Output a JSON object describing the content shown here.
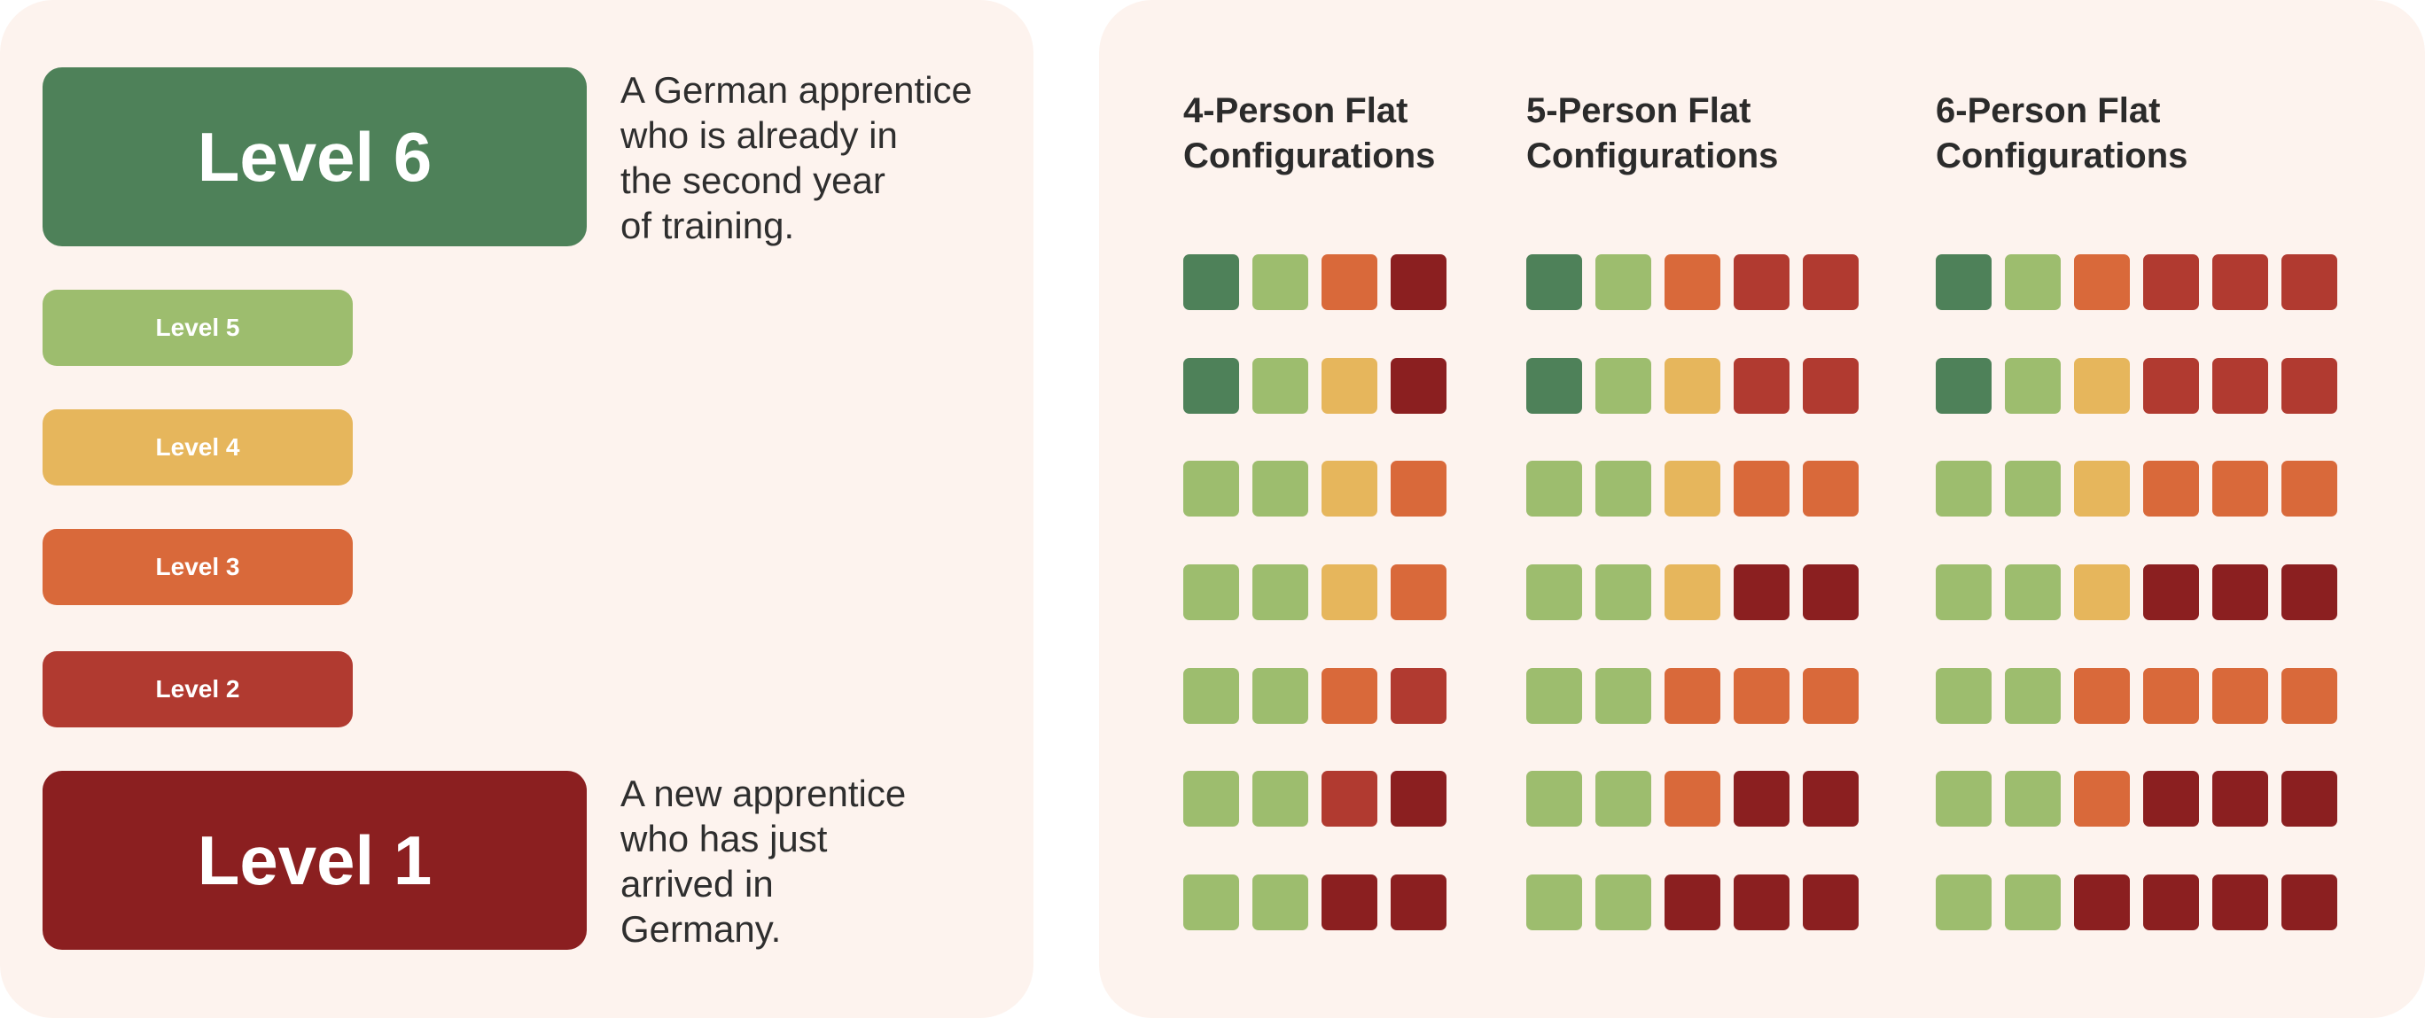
{
  "colors": {
    "level6": "#4e8159",
    "level5": "#9dbd6e",
    "level4": "#e6b65c",
    "level3": "#d9693a",
    "level2": "#b13a30",
    "level1": "#8b1f20"
  },
  "legend": {
    "level6": {
      "label": "Level 6",
      "description": "A German apprentice\nwho is already in\nthe second year\nof training."
    },
    "level5": {
      "label": "Level 5"
    },
    "level4": {
      "label": "Level 4"
    },
    "level3": {
      "label": "Level 3"
    },
    "level2": {
      "label": "Level 2"
    },
    "level1": {
      "label": "Level 1",
      "description": "A new apprentice\nwho has just\narrived in\nGermany."
    }
  },
  "configurations": [
    {
      "title": "4-Person Flat\nConfigurations",
      "rows": [
        [
          6,
          5,
          3,
          1
        ],
        [
          6,
          5,
          4,
          1
        ],
        [
          5,
          5,
          4,
          3
        ],
        [
          5,
          5,
          4,
          3
        ],
        [
          5,
          5,
          3,
          2
        ],
        [
          5,
          5,
          2,
          1
        ],
        [
          5,
          5,
          1,
          1
        ]
      ]
    },
    {
      "title": "5-Person Flat\nConfigurations",
      "rows": [
        [
          6,
          5,
          3,
          2,
          2
        ],
        [
          6,
          5,
          4,
          2,
          2
        ],
        [
          5,
          5,
          4,
          3,
          3
        ],
        [
          5,
          5,
          4,
          1,
          1
        ],
        [
          5,
          5,
          3,
          3,
          3
        ],
        [
          5,
          5,
          3,
          1,
          1
        ],
        [
          5,
          5,
          1,
          1,
          1
        ]
      ]
    },
    {
      "title": "6-Person Flat\nConfigurations",
      "rows": [
        [
          6,
          5,
          3,
          2,
          2,
          2
        ],
        [
          6,
          5,
          4,
          2,
          2,
          2
        ],
        [
          5,
          5,
          4,
          3,
          3,
          3
        ],
        [
          5,
          5,
          4,
          1,
          1,
          1
        ],
        [
          5,
          5,
          3,
          3,
          3,
          3
        ],
        [
          5,
          5,
          3,
          1,
          1,
          1
        ],
        [
          5,
          5,
          1,
          1,
          1,
          1
        ]
      ]
    }
  ]
}
